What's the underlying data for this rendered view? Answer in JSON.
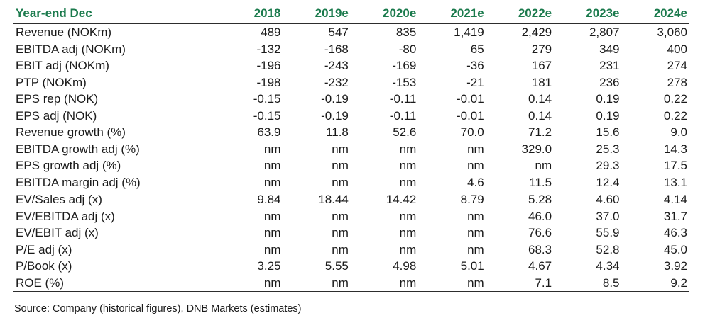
{
  "table": {
    "header": [
      "Year-end Dec",
      "2018",
      "2019e",
      "2020e",
      "2021e",
      "2022e",
      "2023e",
      "2024e"
    ],
    "header_color": "#1a7a4c",
    "rows": [
      [
        "Revenue (NOKm)",
        "489",
        "547",
        "835",
        "1,419",
        "2,429",
        "2,807",
        "3,060"
      ],
      [
        "EBITDA adj (NOKm)",
        "-132",
        "-168",
        "-80",
        "65",
        "279",
        "349",
        "400"
      ],
      [
        "EBIT adj (NOKm)",
        "-196",
        "-243",
        "-169",
        "-36",
        "167",
        "231",
        "274"
      ],
      [
        "PTP (NOKm)",
        "-198",
        "-232",
        "-153",
        "-21",
        "181",
        "236",
        "278"
      ],
      [
        "EPS rep (NOK)",
        "-0.15",
        "-0.19",
        "-0.11",
        "-0.01",
        "0.14",
        "0.19",
        "0.22"
      ],
      [
        "EPS adj (NOK)",
        "-0.15",
        "-0.19",
        "-0.11",
        "-0.01",
        "0.14",
        "0.19",
        "0.22"
      ],
      [
        "Revenue growth (%)",
        "63.9",
        "11.8",
        "52.6",
        "70.0",
        "71.2",
        "15.6",
        "9.0"
      ],
      [
        "EBITDA growth adj (%)",
        "nm",
        "nm",
        "nm",
        "nm",
        "329.0",
        "25.3",
        "14.3"
      ],
      [
        "EPS growth adj (%)",
        "nm",
        "nm",
        "nm",
        "nm",
        "nm",
        "29.3",
        "17.5"
      ],
      [
        "EBITDA margin adj (%)",
        "nm",
        "nm",
        "nm",
        "4.6",
        "11.5",
        "12.4",
        "13.1"
      ],
      [
        "EV/Sales adj (x)",
        "9.84",
        "18.44",
        "14.42",
        "8.79",
        "5.28",
        "4.60",
        "4.14"
      ],
      [
        "EV/EBITDA adj (x)",
        "nm",
        "nm",
        "nm",
        "nm",
        "46.0",
        "37.0",
        "31.7"
      ],
      [
        "EV/EBIT adj (x)",
        "nm",
        "nm",
        "nm",
        "nm",
        "76.6",
        "55.9",
        "46.3"
      ],
      [
        "P/E adj (x)",
        "nm",
        "nm",
        "nm",
        "nm",
        "68.3",
        "52.8",
        "45.0"
      ],
      [
        "P/Book (x)",
        "3.25",
        "5.55",
        "4.98",
        "5.01",
        "4.67",
        "4.34",
        "3.92"
      ],
      [
        "ROE (%)",
        "nm",
        "nm",
        "nm",
        "nm",
        "7.1",
        "8.5",
        "9.2"
      ]
    ]
  },
  "source": "Source: Company (historical figures), DNB Markets (estimates)"
}
